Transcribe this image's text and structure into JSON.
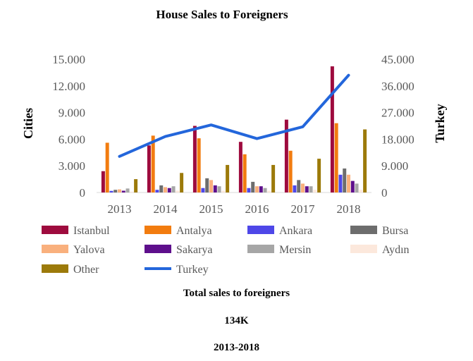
{
  "chart_data": {
    "type": "bar",
    "title": "House Sales to Foreigners",
    "ylabel_left": "Cities",
    "ylabel_right": "Turkey",
    "categories": [
      "2013",
      "2014",
      "2015",
      "2016",
      "2017",
      "2018"
    ],
    "ylim_left": [
      0,
      15000
    ],
    "ylim_right": [
      0,
      45000
    ],
    "yticks_left": [
      "0",
      "3.000",
      "6.000",
      "9.000",
      "12.000",
      "15.000"
    ],
    "yticks_right": [
      "0",
      "9.000",
      "18.000",
      "27.000",
      "36.000",
      "45.000"
    ],
    "series": [
      {
        "name": "Istanbul",
        "color": "#9e0b3e",
        "values": [
          2400,
          5300,
          7500,
          5700,
          8200,
          14200
        ]
      },
      {
        "name": "Antalya",
        "color": "#f27c0f",
        "values": [
          5600,
          6400,
          6100,
          4300,
          4700,
          7800
        ]
      },
      {
        "name": "Ankara",
        "color": "#4e47e8",
        "values": [
          180,
          300,
          500,
          500,
          800,
          2000
        ]
      },
      {
        "name": "Bursa",
        "color": "#6d6d6d",
        "values": [
          300,
          800,
          1600,
          1200,
          1400,
          2700
        ]
      },
      {
        "name": "Yalova",
        "color": "#f9b07d",
        "values": [
          350,
          600,
          1400,
          700,
          1000,
          2000
        ]
      },
      {
        "name": "Sakarya",
        "color": "#5e0f8c",
        "values": [
          200,
          500,
          800,
          700,
          700,
          1300
        ]
      },
      {
        "name": "Mersin",
        "color": "#a6a6a6",
        "values": [
          450,
          700,
          700,
          500,
          700,
          1000
        ]
      },
      {
        "name": "Aydın",
        "color": "#fce8dc",
        "values": [
          100,
          200,
          200,
          200,
          300,
          300
        ]
      },
      {
        "name": "Other",
        "color": "#9c7a0a",
        "values": [
          1500,
          2200,
          3100,
          3100,
          3800,
          7100
        ]
      }
    ],
    "line_series": {
      "name": "Turkey",
      "color": "#2366db",
      "axis": "right",
      "values": [
        12200,
        18900,
        22800,
        18200,
        22200,
        39600
      ]
    },
    "grid": false,
    "legend_position": "bottom"
  },
  "footer": {
    "line1": "Total sales to foreigners",
    "line2": "134K",
    "line3": "2013-2018"
  }
}
